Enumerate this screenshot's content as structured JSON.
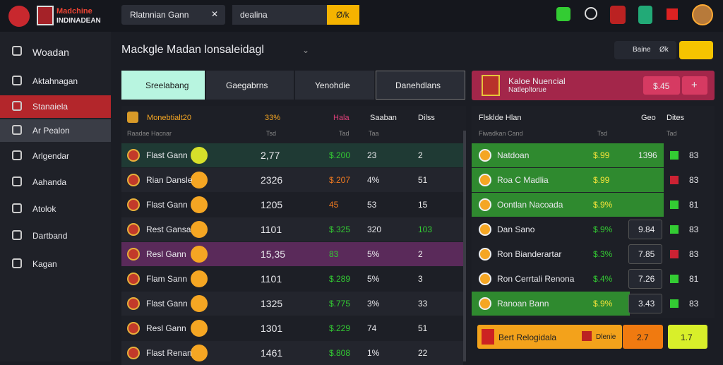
{
  "header": {
    "logo_top": "Madchine",
    "logo_bottom": "INDINADEAN",
    "search": "Rlatnnian Gann",
    "search2": "dealina",
    "button": "Ø/k"
  },
  "sidebar": [
    "Woadan",
    "Aktahnagan",
    "Stanaiela",
    "Ar Pealon",
    "Arlgendar",
    "Aahanda",
    "Atolok",
    "Dartband",
    "Kagan"
  ],
  "main": {
    "title": "Mackgle Madan lonsaleidagl",
    "actions": [
      "Baine",
      "Øk"
    ],
    "tabs": [
      "Sreelabang",
      "Gaegabrns",
      "Yenohdie",
      "Danehdlans"
    ],
    "table": {
      "header": [
        "Monebtialt20",
        "33%",
        "Hala",
        "Saaban",
        "Dilss"
      ],
      "subheader": [
        "Raadae Hacnar",
        "Tsd",
        "Tad",
        "Taa"
      ],
      "rows": [
        [
          "Flast Gann",
          "2,77",
          "$.200",
          "23",
          "2"
        ],
        [
          "Rian Dansle",
          "2326",
          "$.207",
          "4%",
          "51"
        ],
        [
          "Flast Gann",
          "1205",
          "45",
          "53",
          "15"
        ],
        [
          "Rest Gansa",
          "1101",
          "$.325",
          "320",
          "103"
        ],
        [
          "Resl Gann",
          "15,35",
          "83",
          "5%",
          "2"
        ],
        [
          "Flam Sann",
          "1101",
          "$.289",
          "5%",
          "3"
        ],
        [
          "Flast Gann",
          "1325",
          "$.775",
          "3%",
          "33"
        ],
        [
          "Resl Gann",
          "1301",
          "$.229",
          "74",
          "51"
        ],
        [
          "Flast Renan",
          "1461",
          "$.808",
          "1%",
          "22"
        ]
      ]
    }
  },
  "side": {
    "card": {
      "title": "Kaloe Nuencial",
      "subtitle": "Natlepltorue",
      "price": "$.45",
      "plus": "+"
    },
    "table": {
      "header": [
        "Flsklde Hlan",
        "Geo",
        "Dites"
      ],
      "subheader": [
        "Fiwadkan Cand",
        "Tsd",
        "Tad"
      ],
      "rows": [
        [
          "Natdoan",
          "$.99",
          "1396",
          "83"
        ],
        [
          "Roa C Madlia",
          "$.99",
          "",
          "83"
        ],
        [
          "Oontlan Nacoada",
          "$.9%",
          "",
          "81"
        ],
        [
          "Dan Sano",
          "$.9%",
          "9.84",
          "83"
        ],
        [
          "Ron Bianderartar",
          "$.3%",
          "7.85",
          "83"
        ],
        [
          "Ron Cerrtali Renona",
          "$.4%",
          "7.26",
          "81"
        ],
        [
          "Ranoan Bann",
          "$.9%",
          "3.43",
          "83"
        ]
      ]
    },
    "bottom": {
      "name": "Bert Relogidala",
      "tag": "Dlenie",
      "odd1": "2.7",
      "odd2": "1.7"
    }
  }
}
